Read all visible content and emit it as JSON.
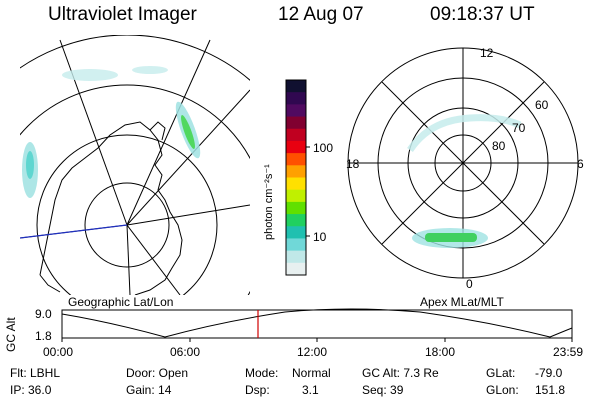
{
  "header": {
    "instrument": "Ultraviolet Imager",
    "date": "12 Aug 07",
    "time": "09:18:37 UT"
  },
  "colorbar": {
    "ticks": [
      "100",
      "10"
    ],
    "units": "photon cm⁻²s⁻¹",
    "colors": [
      "#101030",
      "#300850",
      "#500a60",
      "#800030",
      "#c00020",
      "#e80010",
      "#ff5000",
      "#ffa000",
      "#ffe000",
      "#c0f000",
      "#60e000",
      "#20d060",
      "#20c0b0",
      "#70d8d8",
      "#c0e8e8",
      "#e8f0f0"
    ]
  },
  "left_panel": {
    "label": "Geographic Lat/Lon"
  },
  "right_panel": {
    "label": "Apex MLat/MLT",
    "mlt_labels": {
      "top": "12",
      "left": "18",
      "right": "6",
      "bottom": "0"
    },
    "lat_labels": [
      "60",
      "70",
      "80"
    ]
  },
  "altitude_plot": {
    "ylabel": "GC Alt",
    "yticks": [
      "9.0",
      "1.8"
    ],
    "xticks": [
      "00:00",
      "06:00",
      "12:00",
      "18:00",
      "23:59"
    ]
  },
  "info": {
    "row1": {
      "flt": "Flt: LBHL",
      "door": "Door: Open",
      "mode_label": "Mode:",
      "mode_value": "Normal",
      "gcalt": "GC Alt: 7.3 Re",
      "glat_label": "GLat:",
      "glat_value": "-79.0"
    },
    "row2": {
      "ip": "IP: 36.0",
      "gain": "Gain: 14",
      "dsp_label": "Dsp:",
      "dsp_value": "3.1",
      "seq": "Seq: 39",
      "glon_label": "GLon:",
      "glon_value": "151.8"
    }
  }
}
